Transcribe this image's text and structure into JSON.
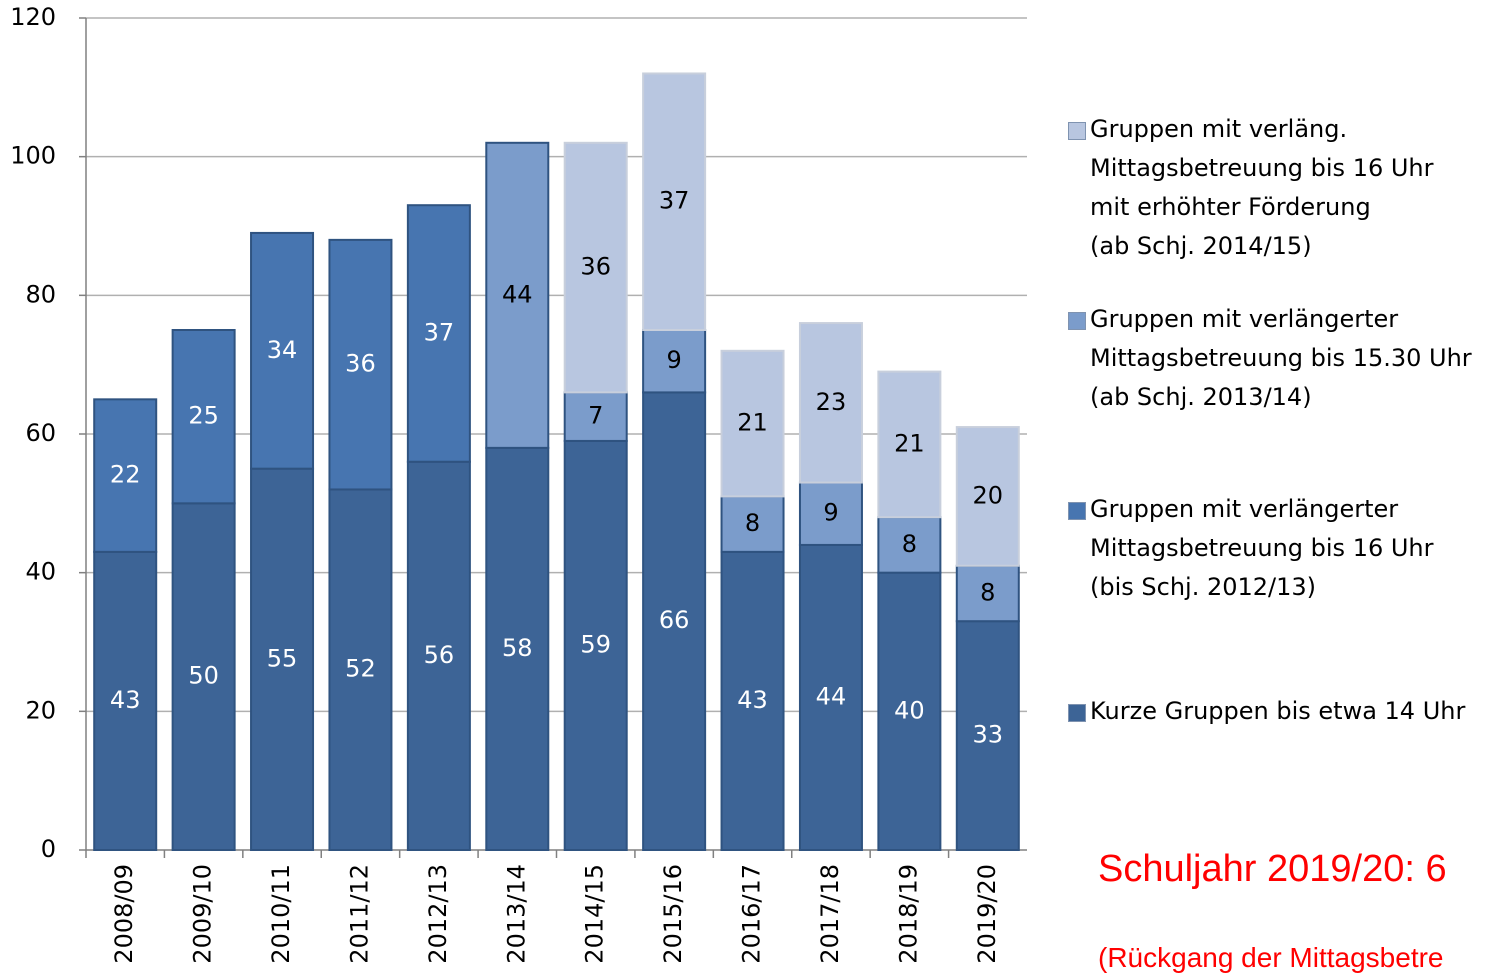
{
  "chart_data": {
    "type": "stacked_bar",
    "categories": [
      "2008/09",
      "2009/10",
      "2010/11",
      "2011/12",
      "2012/13",
      "2013/14",
      "2014/15",
      "2015/16",
      "2016/17",
      "2017/18",
      "2018/19",
      "2019/20"
    ],
    "series": [
      {
        "name": "Kurze Gruppen bis etwa 14 Uhr",
        "color": "#3d6496",
        "label_color": "#ffffff",
        "values": [
          43,
          50,
          55,
          52,
          56,
          58,
          59,
          66,
          43,
          44,
          40,
          33
        ]
      },
      {
        "name": "Gruppen mit verlängerter\nMittagsbetreuung bis 16 Uhr\n(bis Schj. 2012/13)",
        "color": "#4775b0",
        "label_color": "#ffffff",
        "values": [
          22,
          25,
          34,
          36,
          37,
          null,
          null,
          null,
          null,
          null,
          null,
          null
        ]
      },
      {
        "name": "Gruppen mit verlängerter\nMittagsbetreuung bis 15.30 Uhr\n(ab Schj. 2013/14)",
        "color": "#7b9ccb",
        "label_color": "#000000",
        "values": [
          null,
          null,
          null,
          null,
          null,
          44,
          7,
          9,
          8,
          9,
          8,
          8
        ]
      },
      {
        "name": "Gruppen mit verläng.\nMittagsbetreuung bis 16 Uhr\nmit erhöhter Förderung\n(ab Schj. 2014/15)",
        "color": "#b8c6e0",
        "label_color": "#000000",
        "values": [
          null,
          null,
          null,
          null,
          null,
          null,
          36,
          37,
          21,
          23,
          21,
          20
        ]
      }
    ],
    "ylim": [
      0,
      120
    ],
    "yticks": [
      0,
      20,
      40,
      60,
      80,
      100,
      120
    ],
    "grid": true,
    "legend": "right",
    "annotations": [
      "Schuljahr 2019/20: 6",
      "(Rückgang der Mittagsbetre"
    ]
  }
}
